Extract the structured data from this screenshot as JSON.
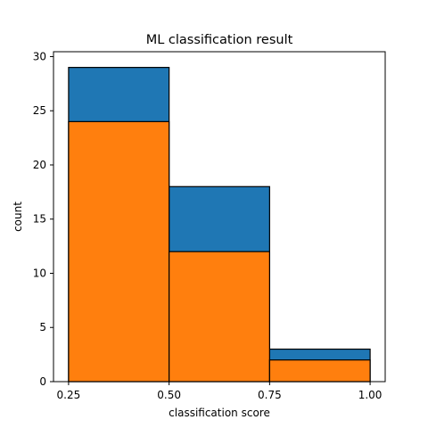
{
  "chart_data": {
    "type": "bar",
    "title": "ML classification result",
    "xlabel": "classification score",
    "ylabel": "count",
    "xlim": [
      0.2125,
      1.0375
    ],
    "ylim": [
      0,
      30.45
    ],
    "xticks": [
      "0.25",
      "0.50",
      "0.75",
      "1.00"
    ],
    "xtick_values": [
      0.25,
      0.5,
      0.75,
      1.0
    ],
    "yticks": [
      "0",
      "5",
      "10",
      "15",
      "20",
      "25",
      "30"
    ],
    "ytick_values": [
      0,
      5,
      10,
      15,
      20,
      25,
      30
    ],
    "bin_edges": [
      0.25,
      0.5,
      0.75,
      1.0
    ],
    "series": [
      {
        "color": "#1f77b4",
        "values": [
          29,
          18,
          3
        ]
      },
      {
        "color": "#ff7f0e",
        "values": [
          24,
          12,
          2
        ]
      }
    ],
    "grid": false
  }
}
